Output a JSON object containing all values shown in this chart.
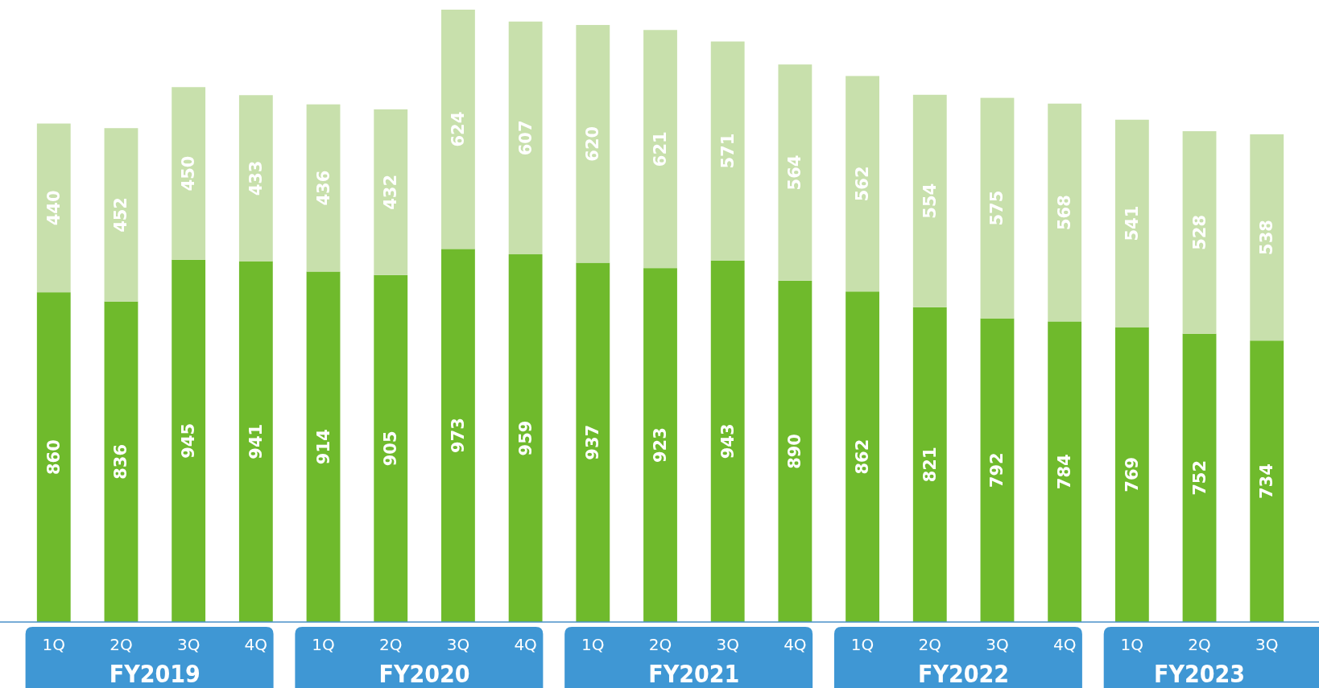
{
  "chart_data": {
    "type": "bar",
    "stacked": true,
    "data_labels": true,
    "categories": [
      "1Q",
      "2Q",
      "3Q",
      "4Q",
      "1Q",
      "2Q",
      "3Q",
      "4Q",
      "1Q",
      "2Q",
      "3Q",
      "4Q",
      "1Q",
      "2Q",
      "3Q",
      "4Q",
      "1Q",
      "2Q",
      "3Q"
    ],
    "series": [
      {
        "color": "#6fba2c",
        "values": [
          860,
          836,
          945,
          941,
          914,
          905,
          973,
          959,
          937,
          923,
          943,
          890,
          862,
          821,
          792,
          784,
          769,
          752,
          734
        ]
      },
      {
        "color": "#c8e0ac",
        "values": [
          440,
          452,
          450,
          433,
          436,
          432,
          624,
          607,
          620,
          621,
          571,
          564,
          562,
          554,
          575,
          568,
          541,
          528,
          538
        ]
      }
    ],
    "annotations": [
      "FY2019",
      "FY2020",
      "FY2021",
      "FY2022",
      "FY2023"
    ]
  }
}
